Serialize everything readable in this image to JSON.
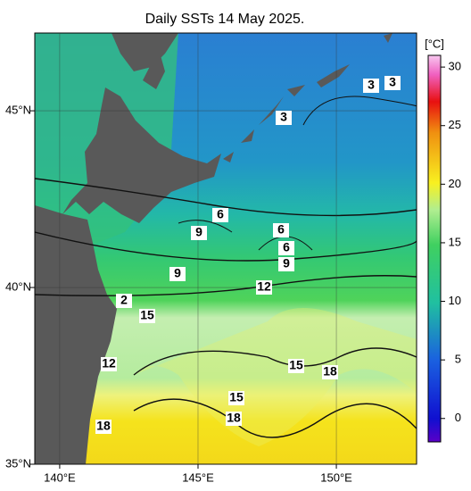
{
  "title": "Daily SSTs 14 May 2025.",
  "map": {
    "lonlim": [
      139.1,
      152.9
    ],
    "latlim": [
      35,
      47.2
    ],
    "lon_ticks": [
      {
        "value": 140,
        "label": "140°E"
      },
      {
        "value": 145,
        "label": "145°E"
      },
      {
        "value": 150,
        "label": "150°E"
      }
    ],
    "lat_ticks": [
      {
        "value": 35,
        "label": "35°N"
      },
      {
        "value": 40,
        "label": "40°N"
      },
      {
        "value": 45,
        "label": "45°N"
      }
    ],
    "contour_labels": [
      "3",
      "3",
      "3",
      "6",
      "9",
      "6",
      "6",
      "9",
      "9",
      "12",
      "2",
      "15",
      "12",
      "15",
      "18",
      "15",
      "18",
      "18"
    ]
  },
  "colorbar": {
    "unit": "[°C]",
    "lim": [
      -2,
      31
    ],
    "ticks": [
      0,
      5,
      10,
      15,
      20,
      25,
      30
    ]
  }
}
